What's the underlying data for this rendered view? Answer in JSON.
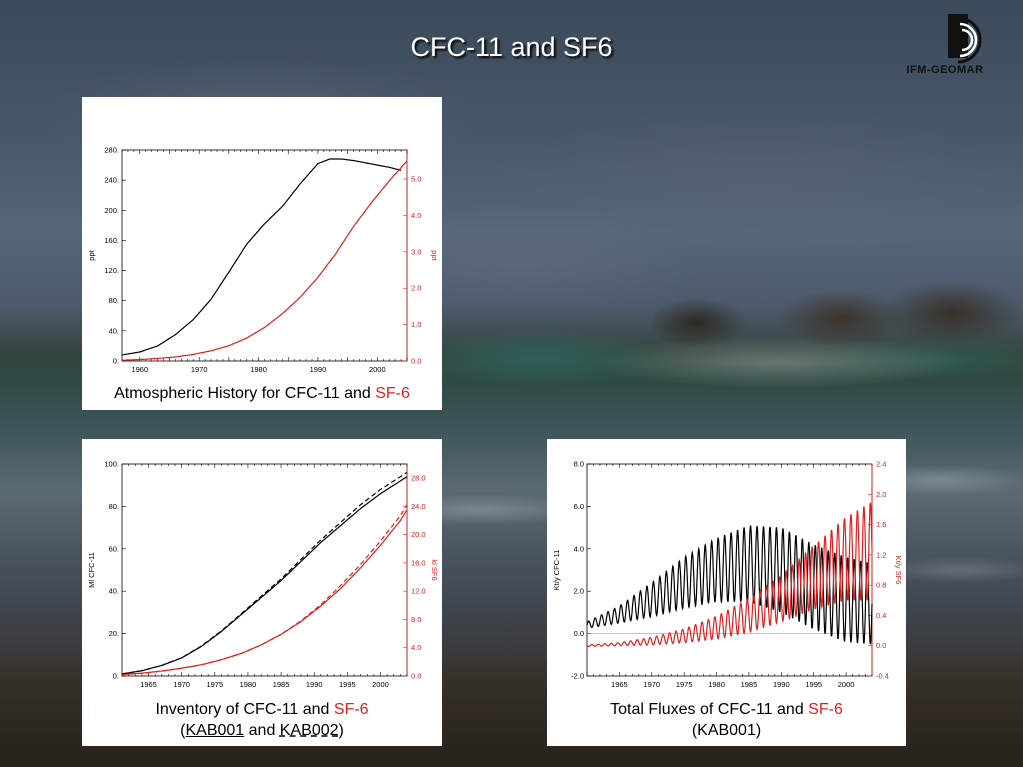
{
  "slide": {
    "title": "CFC-11 and SF6",
    "logo_text": "IFM-GEOMAR",
    "logo_icon": "ifm-geomar-logo-icon"
  },
  "colors": {
    "cfc11": "#000000",
    "sf6": "#e0201c"
  },
  "panels": {
    "history": {
      "caption_main": "Atmospheric History for CFC-11 and ",
      "caption_red": "SF-6"
    },
    "inventory": {
      "caption_main": "Inventory of CFC-11 and ",
      "caption_red": "SF-6",
      "caption_open": "(",
      "caption_run1": "KAB001",
      "caption_and": " and ",
      "caption_run2": "KAB002",
      "caption_close": ")"
    },
    "fluxes": {
      "caption_main": "Total Fluxes of CFC-11 and ",
      "caption_red": "SF-6",
      "caption_line2": "(KAB001)"
    }
  },
  "chart_data": [
    {
      "type": "line",
      "title": "",
      "xlabel": "",
      "ylabel": "ppt",
      "ylabel_right": "ppt",
      "xlim": [
        1957,
        2005
      ],
      "ylim": [
        0,
        280
      ],
      "ylim_right": [
        0,
        5.8
      ],
      "xticks": [
        "1960",
        "1970",
        "1980",
        "1990",
        "2000"
      ],
      "yticks": [
        "0.",
        "40.",
        "80.",
        "120.",
        "160.",
        "200.",
        "240.",
        "280."
      ],
      "yticks_right": [
        "0.0",
        "1.0",
        "2.0",
        "3.0",
        "4.0",
        "5.0"
      ],
      "series": [
        {
          "axis": "left",
          "x": [
            1957,
            1960,
            1963,
            1966,
            1969,
            1972,
            1975,
            1978,
            1981,
            1984,
            1987,
            1990,
            1992,
            1994,
            1996,
            1998,
            2000,
            2002,
            2004
          ],
          "y": [
            8,
            12,
            20,
            35,
            55,
            82,
            118,
            155,
            182,
            205,
            235,
            262,
            268,
            268,
            266,
            263,
            260,
            257,
            253
          ]
        },
        {
          "axis": "right",
          "x": [
            1957,
            1960,
            1963,
            1966,
            1969,
            1972,
            1975,
            1978,
            1981,
            1984,
            1987,
            1990,
            1993,
            1996,
            1999,
            2002,
            2005
          ],
          "y": [
            0.02,
            0.04,
            0.07,
            0.11,
            0.18,
            0.28,
            0.42,
            0.63,
            0.92,
            1.3,
            1.75,
            2.3,
            2.95,
            3.7,
            4.35,
            4.95,
            5.5
          ]
        }
      ]
    },
    {
      "type": "line",
      "title": "",
      "xlabel": "",
      "ylabel": "Ml CFC-11",
      "ylabel_right": "kl SF6",
      "xlim": [
        1961,
        2004
      ],
      "ylim": [
        0,
        100
      ],
      "ylim_right": [
        0,
        30
      ],
      "xticks": [
        "1965",
        "1970",
        "1975",
        "1980",
        "1985",
        "1990",
        "1995",
        "2000"
      ],
      "yticks": [
        "0.",
        "20.",
        "40.",
        "60.",
        "80.",
        "100."
      ],
      "yticks_right": [
        "0.0",
        "4.0",
        "8.0",
        "12.0",
        "16.0",
        "20.0",
        "24.0",
        "28.0"
      ],
      "series": [
        {
          "name": "KAB001",
          "axis": "left",
          "style": "solid",
          "x": [
            1961,
            1964,
            1967,
            1970,
            1973,
            1976,
            1979,
            1982,
            1985,
            1988,
            1991,
            1994,
            1997,
            2000,
            2003,
            2004
          ],
          "y": [
            1,
            2.5,
            5,
            8.5,
            14,
            21,
            29,
            37,
            45,
            54,
            63,
            71,
            79,
            86,
            92,
            94
          ]
        },
        {
          "name": "KAB002",
          "axis": "left",
          "style": "dashed",
          "x": [
            1961,
            1964,
            1967,
            1970,
            1973,
            1976,
            1979,
            1982,
            1985,
            1988,
            1991,
            1994,
            1997,
            2000,
            2003,
            2004
          ],
          "y": [
            1,
            2.5,
            5,
            8.6,
            14.2,
            21.3,
            29.4,
            37.6,
            45.8,
            55,
            64.2,
            72.5,
            80.8,
            88,
            94,
            96
          ]
        },
        {
          "name": "KAB001",
          "axis": "right",
          "style": "solid",
          "x": [
            1961,
            1964,
            1967,
            1970,
            1973,
            1976,
            1979,
            1982,
            1985,
            1988,
            1991,
            1994,
            1997,
            2000,
            2003,
            2004
          ],
          "y": [
            0.2,
            0.4,
            0.7,
            1.1,
            1.6,
            2.3,
            3.2,
            4.4,
            5.9,
            7.7,
            9.9,
            12.4,
            15.3,
            18.5,
            22,
            23.5
          ]
        },
        {
          "name": "KAB002",
          "axis": "right",
          "style": "dashed",
          "x": [
            1961,
            1964,
            1967,
            1970,
            1973,
            1976,
            1979,
            1982,
            1985,
            1988,
            1991,
            1994,
            1997,
            2000,
            2003,
            2004
          ],
          "y": [
            0.2,
            0.4,
            0.7,
            1.1,
            1.6,
            2.3,
            3.2,
            4.4,
            5.9,
            7.8,
            10.1,
            12.8,
            15.8,
            19.1,
            22.7,
            24.2
          ]
        }
      ]
    },
    {
      "type": "line",
      "title": "",
      "xlabel": "",
      "ylabel": "Kt/y CFC-11",
      "ylabel_right": "Kt/y SF6",
      "xlim": [
        1960,
        2004
      ],
      "ylim": [
        -2,
        8
      ],
      "ylim_right": [
        -0.4,
        2.4
      ],
      "xticks": [
        "1965",
        "1970",
        "1975",
        "1980",
        "1985",
        "1990",
        "1995",
        "2000"
      ],
      "yticks": [
        "-2.0",
        "0.0",
        "2.0",
        "4.0",
        "6.0",
        "8.0"
      ],
      "yticks_right": [
        "-0.4",
        "0.0",
        "0.4",
        "0.8",
        "1.2",
        "1.6",
        "2.0",
        "2.4"
      ],
      "series": [
        {
          "axis": "left",
          "seasonal": true,
          "x": [
            1960,
            1965,
            1970,
            1975,
            1980,
            1985,
            1990,
            1995,
            2000,
            2004
          ],
          "mean": [
            0.4,
            0.9,
            1.6,
            2.4,
            3.0,
            3.3,
            3.0,
            2.2,
            1.6,
            1.4
          ],
          "amplitude": [
            0.15,
            0.4,
            0.8,
            1.2,
            1.5,
            1.8,
            2.0,
            2.0,
            2.0,
            1.9
          ]
        },
        {
          "axis": "right",
          "seasonal": true,
          "x": [
            1960,
            1965,
            1970,
            1975,
            1980,
            1985,
            1990,
            1995,
            2000,
            2004
          ],
          "mean": [
            0.0,
            0.02,
            0.06,
            0.13,
            0.24,
            0.4,
            0.62,
            0.9,
            1.15,
            1.25
          ],
          "amplitude": [
            0.01,
            0.02,
            0.05,
            0.09,
            0.15,
            0.22,
            0.3,
            0.42,
            0.55,
            0.65
          ]
        }
      ]
    }
  ]
}
